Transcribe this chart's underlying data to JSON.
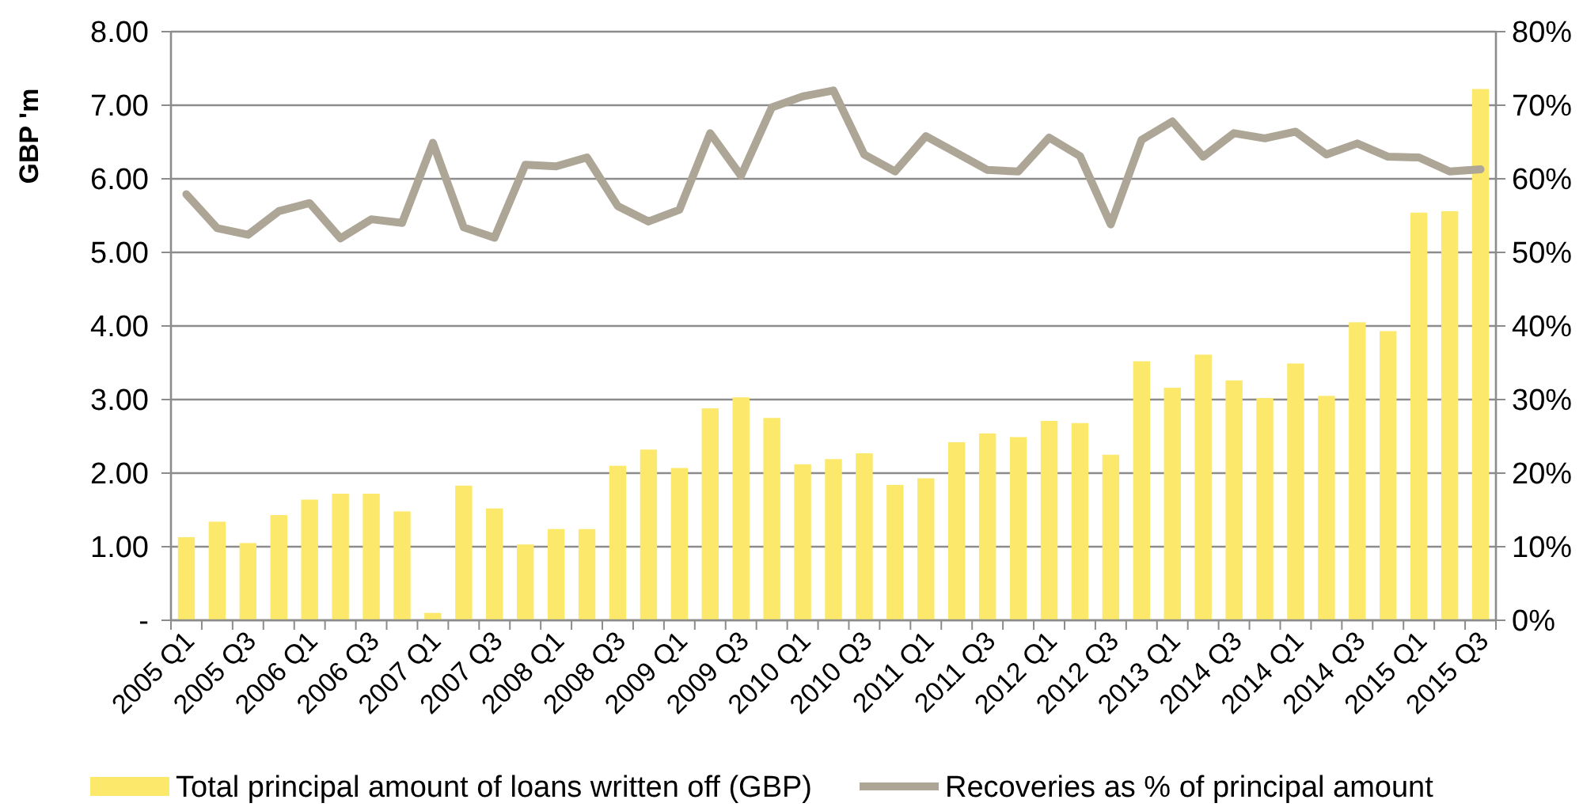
{
  "chart_data": {
    "type": "bar",
    "ylabel": "GBP 'm",
    "categories": [
      "2005 Q1",
      null,
      "2005 Q3",
      null,
      "2006 Q1",
      null,
      "2006 Q3",
      null,
      "2007 Q1",
      null,
      "2007 Q3",
      null,
      "2008 Q1",
      null,
      "2008 Q3",
      null,
      "2009 Q1",
      null,
      "2009 Q3",
      null,
      "2010 Q1",
      null,
      "2010 Q3",
      null,
      "2011 Q1",
      null,
      "2011 Q3",
      null,
      "2012 Q1",
      null,
      "2012 Q3",
      null,
      "2013 Q1",
      null,
      "2014 Q3",
      null,
      "2014 Q1",
      null,
      "2014 Q3",
      null,
      "2015 Q1",
      null,
      "2015 Q3"
    ],
    "series": [
      {
        "name": "Total principal amount of loans written off (GBP)",
        "color": "#fce86a",
        "values": [
          1.13,
          1.34,
          1.05,
          1.43,
          1.64,
          1.72,
          1.72,
          1.48,
          0.1,
          1.83,
          1.52,
          1.03,
          1.24,
          1.24,
          2.1,
          2.32,
          2.07,
          2.88,
          3.03,
          2.75,
          2.12,
          2.19,
          2.27,
          1.84,
          1.93,
          2.42,
          2.54,
          2.49,
          2.71,
          2.68,
          2.25,
          3.52,
          3.16,
          3.61,
          3.26,
          3.02,
          3.49,
          3.05,
          4.05,
          3.93,
          5.54,
          5.56,
          7.22
        ]
      },
      {
        "name": "Recoveries as % of principal amount",
        "type": "line",
        "axis": "y2",
        "color": "#ada596",
        "values": [
          57.9,
          53.3,
          52.4,
          55.6,
          56.7,
          51.9,
          54.5,
          54.0,
          64.9,
          53.4,
          52.0,
          61.9,
          61.7,
          62.9,
          56.3,
          54.2,
          55.8,
          66.2,
          60.4,
          69.7,
          71.2,
          72.0,
          63.3,
          61.0,
          65.8,
          63.5,
          61.2,
          61.0,
          65.6,
          63.1,
          53.8,
          65.3,
          67.8,
          63.0,
          66.2,
          65.5,
          66.4,
          63.3,
          64.8,
          63.0,
          62.9,
          61.0,
          61.3
        ]
      }
    ],
    "ylim": [
      0,
      8
    ],
    "yticks": [
      {
        "value": 0,
        "label": "-"
      },
      {
        "value": 1,
        "label": "1.00"
      },
      {
        "value": 2,
        "label": "2.00"
      },
      {
        "value": 3,
        "label": "3.00"
      },
      {
        "value": 4,
        "label": "4.00"
      },
      {
        "value": 5,
        "label": "5.00"
      },
      {
        "value": 6,
        "label": "6.00"
      },
      {
        "value": 7,
        "label": "7.00"
      },
      {
        "value": 8,
        "label": "8.00"
      }
    ],
    "y2lim": [
      0,
      80
    ],
    "y2ticks": [
      {
        "value": 0,
        "label": "0%"
      },
      {
        "value": 10,
        "label": "10%"
      },
      {
        "value": 20,
        "label": "20%"
      },
      {
        "value": 30,
        "label": "30%"
      },
      {
        "value": 40,
        "label": "40%"
      },
      {
        "value": 50,
        "label": "50%"
      },
      {
        "value": 60,
        "label": "60%"
      },
      {
        "value": 70,
        "label": "70%"
      },
      {
        "value": 80,
        "label": "80%"
      }
    ],
    "grid": "y",
    "legend": "bottom",
    "marker": "none"
  }
}
